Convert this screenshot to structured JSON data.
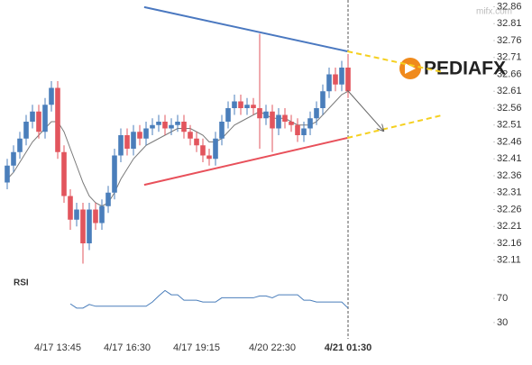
{
  "chart_data": {
    "type": "candlestick",
    "site": "mifx.com",
    "logo": "PEDIAFX",
    "rsi_title": "RSI",
    "categories": [
      null,
      null,
      null,
      null,
      null,
      null,
      null,
      null,
      "4/17 13:45",
      null,
      null,
      null,
      null,
      null,
      null,
      null,
      null,
      null,
      null,
      "4/17 16:30",
      null,
      null,
      null,
      null,
      null,
      null,
      null,
      null,
      null,
      null,
      "4/17 19:15",
      null,
      null,
      null,
      null,
      null,
      null,
      null,
      null,
      null,
      null,
      null,
      "4/20 22:30",
      null,
      null,
      null,
      null,
      null,
      null,
      null,
      null,
      null,
      null,
      null,
      "4/21 01:30"
    ],
    "open": [
      32.34,
      32.39,
      32.43,
      32.47,
      32.52,
      32.55,
      32.49,
      32.57,
      32.62,
      32.43,
      32.3,
      32.23,
      32.26,
      32.16,
      32.26,
      32.22,
      32.27,
      32.31,
      32.42,
      32.48,
      32.44,
      32.49,
      32.47,
      32.5,
      32.51,
      32.52,
      32.5,
      32.51,
      32.52,
      32.49,
      32.47,
      32.45,
      32.42,
      32.41,
      32.47,
      32.52,
      32.56,
      32.58,
      32.56,
      32.57,
      32.56,
      32.53,
      32.55,
      32.5,
      32.54,
      32.52,
      32.51,
      32.48,
      32.5,
      32.53,
      32.56,
      32.61,
      32.66,
      32.63,
      32.68
    ],
    "high": [
      32.41,
      32.45,
      32.49,
      32.54,
      32.57,
      32.57,
      32.59,
      32.64,
      32.64,
      32.45,
      32.32,
      32.28,
      32.28,
      32.28,
      32.28,
      32.29,
      32.33,
      32.44,
      32.5,
      32.5,
      32.51,
      32.51,
      32.52,
      32.53,
      32.54,
      32.54,
      32.53,
      32.54,
      32.54,
      32.51,
      32.49,
      32.47,
      32.44,
      32.49,
      32.54,
      32.58,
      32.6,
      32.6,
      32.59,
      32.59,
      32.78,
      32.57,
      32.57,
      32.56,
      32.56,
      32.54,
      32.53,
      32.52,
      32.55,
      32.58,
      32.63,
      32.68,
      32.68,
      32.7,
      32.72
    ],
    "low": [
      32.32,
      32.37,
      32.41,
      32.45,
      32.5,
      32.47,
      32.47,
      32.55,
      32.41,
      32.28,
      32.2,
      32.21,
      32.1,
      32.14,
      32.2,
      32.2,
      32.25,
      32.29,
      32.4,
      32.42,
      32.42,
      32.45,
      32.45,
      32.48,
      32.49,
      32.48,
      32.48,
      32.49,
      32.47,
      32.45,
      32.43,
      32.4,
      32.39,
      32.39,
      32.45,
      32.5,
      32.54,
      32.54,
      32.54,
      32.54,
      32.44,
      32.51,
      32.43,
      32.48,
      32.5,
      32.49,
      32.46,
      32.46,
      32.48,
      32.51,
      32.54,
      32.59,
      32.61,
      32.61,
      32.59
    ],
    "close": [
      32.39,
      32.43,
      32.47,
      32.52,
      32.55,
      32.49,
      32.57,
      32.62,
      32.43,
      32.3,
      32.23,
      32.26,
      32.16,
      32.26,
      32.22,
      32.27,
      32.31,
      32.42,
      32.48,
      32.44,
      32.49,
      32.47,
      32.5,
      32.51,
      32.52,
      32.5,
      32.51,
      32.52,
      32.49,
      32.47,
      32.45,
      32.42,
      32.41,
      32.47,
      32.52,
      32.56,
      32.58,
      32.56,
      32.57,
      32.56,
      32.53,
      32.55,
      32.5,
      32.54,
      32.52,
      32.51,
      32.48,
      32.5,
      32.53,
      32.56,
      32.61,
      32.66,
      32.63,
      32.68,
      32.61
    ],
    "up_color": "#4a7ebb",
    "down_color": "#e2555d",
    "ma": {
      "color": "#7a7a7a",
      "values": [
        32.35,
        32.37,
        32.4,
        32.43,
        32.46,
        32.48,
        32.5,
        32.52,
        32.52,
        32.49,
        32.44,
        32.39,
        32.34,
        32.3,
        32.28,
        32.27,
        32.28,
        32.31,
        32.35,
        32.38,
        32.41,
        32.43,
        32.45,
        32.46,
        32.47,
        32.48,
        32.49,
        32.5,
        32.5,
        32.5,
        32.49,
        32.48,
        32.46,
        32.46,
        32.47,
        32.49,
        32.51,
        32.52,
        32.53,
        32.54,
        32.55,
        32.54,
        32.53,
        32.53,
        32.53,
        32.52,
        32.51,
        32.51,
        32.51,
        32.52,
        32.54,
        32.56,
        32.58,
        32.6,
        32.61
      ]
    },
    "rsi": {
      "color": "#4a7ebb",
      "values": [
        null,
        null,
        null,
        null,
        null,
        null,
        null,
        null,
        null,
        null,
        61,
        54,
        54,
        60,
        57,
        57,
        57,
        57,
        57,
        57,
        57,
        57,
        57,
        64,
        74,
        83,
        76,
        76,
        67,
        67,
        67,
        64,
        64,
        64,
        71,
        71,
        71,
        71,
        71,
        71,
        74,
        74,
        71,
        76,
        76,
        76,
        76,
        67,
        67,
        64,
        64,
        64,
        64,
        64,
        54
      ],
      "ylim": [
        0,
        100
      ],
      "yticks": [
        30,
        70
      ]
    },
    "trendlines": [
      {
        "color": "#4a78c0",
        "x": [
          21.7,
          53.9
        ],
        "y": [
          32.859,
          32.728
        ]
      },
      {
        "color": "#e8505a",
        "x": [
          21.7,
          53.9
        ],
        "y": [
          32.333,
          32.472
        ]
      }
    ],
    "projections": [
      {
        "color": "#f5d020",
        "x": [
          53.9,
          68.9
        ],
        "y": [
          32.728,
          32.667
        ]
      },
      {
        "color": "#f5d020",
        "x": [
          53.9,
          68.9
        ],
        "y": [
          32.472,
          32.539
        ]
      }
    ],
    "arrow": {
      "color": "#666666",
      "x": [
        53.9,
        59.6
      ],
      "y": [
        32.613,
        32.493
      ]
    },
    "xlim": [
      -1,
      77
    ],
    "ylim": [
      32.08,
      32.88
    ],
    "yticks": [
      32.86,
      32.81,
      32.76,
      32.71,
      32.66,
      32.61,
      32.56,
      32.51,
      32.46,
      32.41,
      32.36,
      32.31,
      32.26,
      32.21,
      32.16,
      32.11
    ]
  }
}
